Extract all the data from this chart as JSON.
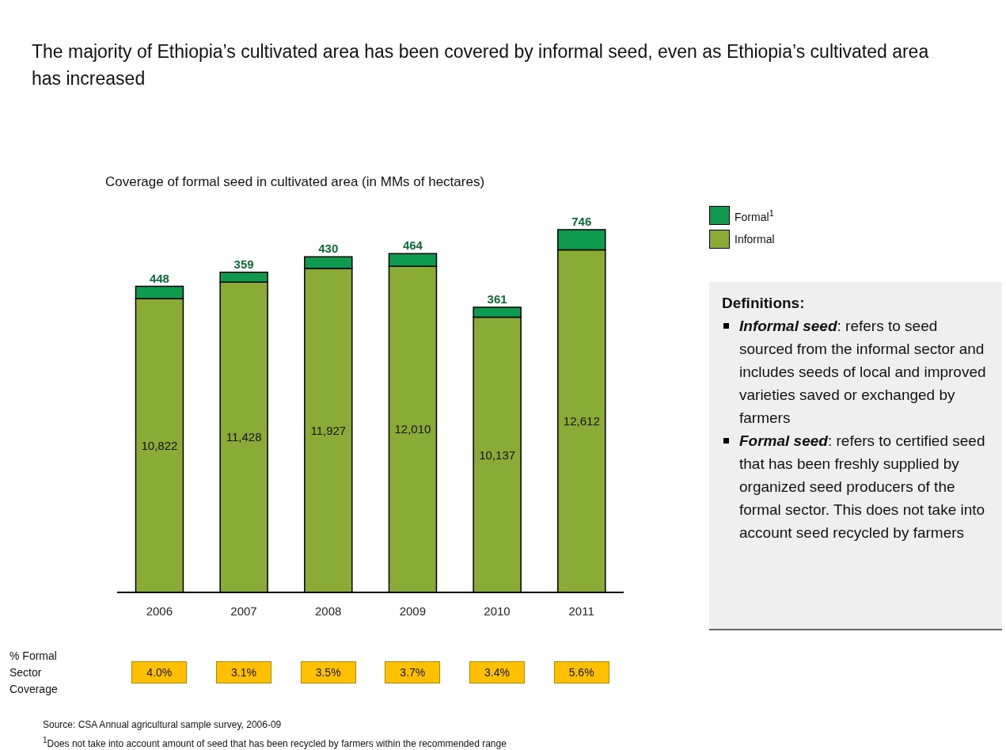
{
  "chart_data": {
    "type": "bar",
    "title": "The majority of Ethiopia’s cultivated area has been covered by informal seed, even as Ethiopia’s cultivated area has increased",
    "subtitle": "Coverage of formal seed in cultivated area (in MMs of hectares)",
    "categories": [
      "2006",
      "2007",
      "2008",
      "2009",
      "2010",
      "2011"
    ],
    "stacked": true,
    "legend": "top right",
    "series": [
      {
        "name": "Informal",
        "color": "#8aab35",
        "values": [
          10822,
          11428,
          11927,
          12010,
          10137,
          12612
        ],
        "value_labels": [
          "10,822",
          "11,428",
          "11,927",
          "12,010",
          "10,137",
          "12,612"
        ]
      },
      {
        "name": "Formal$^{1}$",
        "color": "#0f9a50",
        "values": [
          448,
          359,
          430,
          464,
          361,
          746
        ],
        "value_labels": [
          "448",
          "359",
          "430",
          "464",
          "361",
          "746"
        ]
      }
    ],
    "annotations": [
      "% Formal Sector Coverage",
      "4.0%",
      "3.1%",
      "3.5%",
      "3.7%",
      "3.4%",
      "5.6%",
      "Definitions:",
      "Informal seed: refers to seed sourced from the informal sector and includes seeds of local and improved varieties saved or exchanged by farmers",
      "Formal seed: refers to certified seed that has been freshly supplied by organized seed producers of the formal sector. This does not take into account seed recycled by farmers",
      "Source: CSA Annual agricultural sample survey, 2006-09",
      "$^{1}$Does not take into account amount of seed that has been recycled by farmers within the recommended range"
    ]
  }
}
